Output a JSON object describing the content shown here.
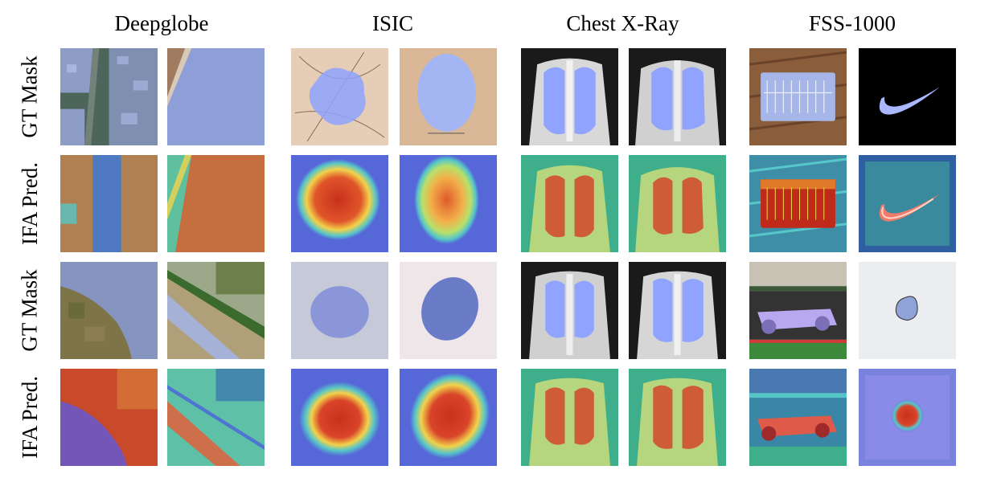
{
  "figure": {
    "columns": [
      {
        "title": "Deepglobe"
      },
      {
        "title": "ISIC"
      },
      {
        "title": "Chest X-Ray"
      },
      {
        "title": "FSS-1000"
      }
    ],
    "rows": [
      {
        "label": "GT Mask",
        "kind": "gt"
      },
      {
        "label": "IFA Pred.",
        "kind": "pred"
      },
      {
        "label": "GT Mask",
        "kind": "gt"
      },
      {
        "label": "IFA Pred.",
        "kind": "pred"
      }
    ],
    "colors": {
      "mask_blue": "#8fa3ff",
      "heat_red": "#d23a1f",
      "heat_yellow": "#f2d24a",
      "heat_cyan": "#56c6c8",
      "heat_blue": "#5668d8",
      "xray_bg": "#1a1a1a"
    }
  }
}
